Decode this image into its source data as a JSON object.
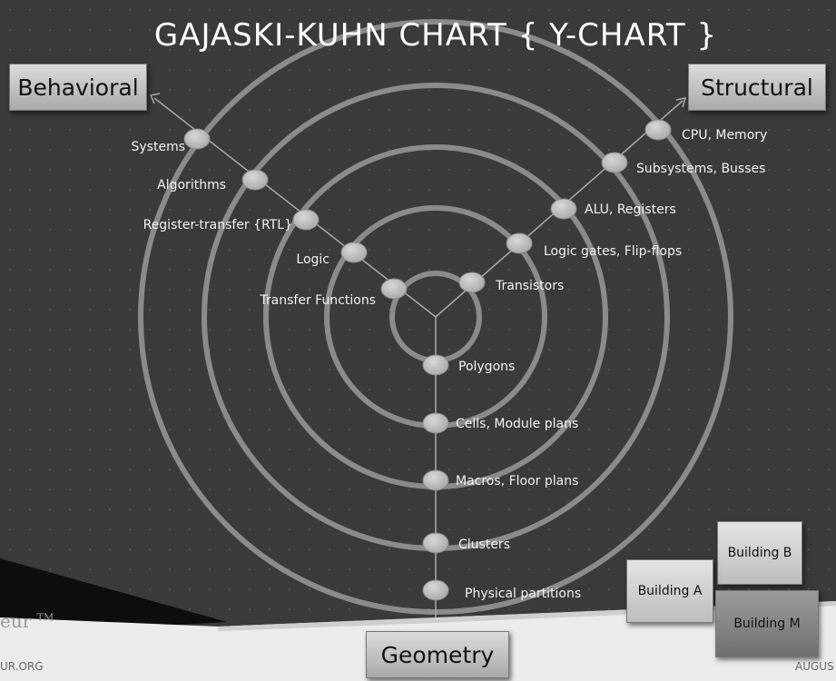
{
  "title": "GAJASKI-KUHN CHART { Y-CHART }",
  "axes": {
    "behavioral": "Behavioral",
    "structural": "Structural",
    "geometry": "Geometry"
  },
  "behavioral_levels": [
    "Systems",
    "Algorithms",
    "Register-transfer {RTL}",
    "Logic",
    "Transfer Functions"
  ],
  "structural_levels": [
    "CPU, Memory",
    "Subsystems, Busses",
    "ALU, Registers",
    "Logic gates, Flip-flops",
    "Transistors"
  ],
  "geometry_levels": [
    "Polygons",
    "Cells, Module plans",
    "Macros, Floor plans",
    "Clusters",
    "Physical partitions"
  ],
  "buildings": {
    "a": "Building A",
    "b": "Building B",
    "m": "Building M"
  },
  "footer": {
    "left": "UR.ORG",
    "right": "AUGUS",
    "logo": "eur",
    "logo_tm": "TM"
  },
  "colors": {
    "background": "#3a3a3a",
    "rings": "#9a9a9a",
    "nodes": "#b8b8b8",
    "text": "#f2f2f2"
  }
}
